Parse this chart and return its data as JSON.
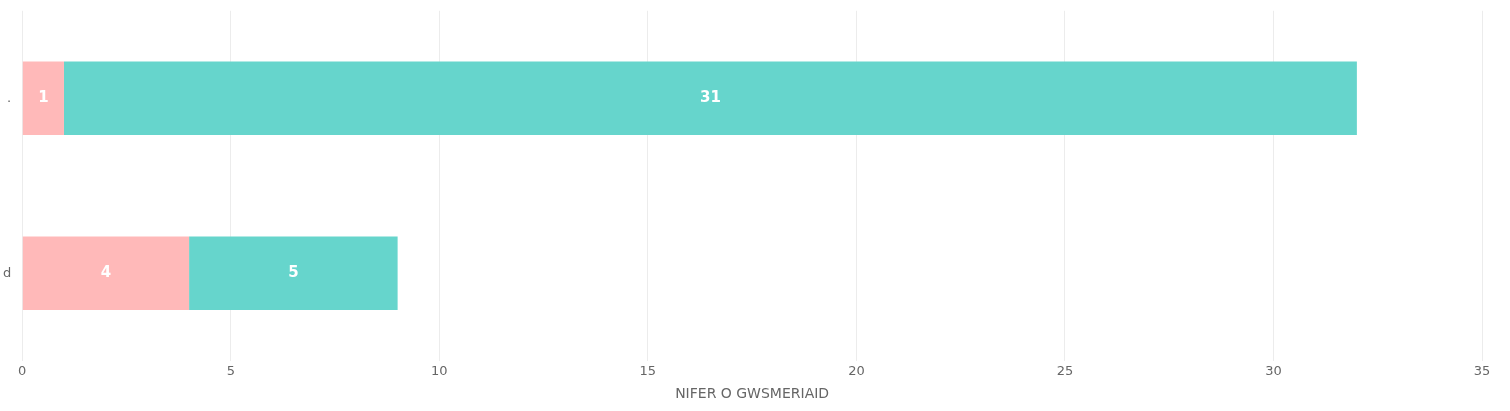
{
  "chart_data": {
    "type": "bar",
    "orientation": "horizontal",
    "stacked": true,
    "categories": [
      ".",
      "d"
    ],
    "series": [
      {
        "color": "#ffb9b9",
        "values": [
          1,
          4
        ]
      },
      {
        "color": "#66d5cc",
        "values": [
          31,
          5
        ]
      }
    ],
    "xlim": [
      0,
      35
    ],
    "xticks": [
      0,
      5,
      10,
      15,
      20,
      25,
      30,
      35
    ],
    "xlabel": "NIFER O GWSMERIAID",
    "grid": "x",
    "legend": false,
    "data_labels": true
  }
}
